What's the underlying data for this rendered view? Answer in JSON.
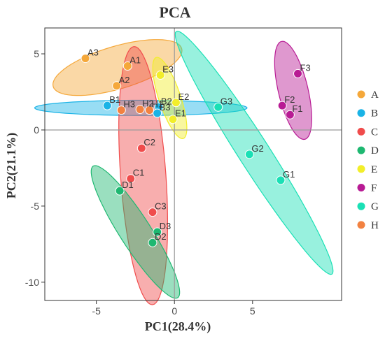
{
  "chart_data": {
    "type": "scatter",
    "title": "PCA",
    "xlabel": "PC1(28.4%)",
    "ylabel": "PC2(21.1%)",
    "xlim": [
      -8.3,
      10.7
    ],
    "ylim": [
      -11.2,
      6.7
    ],
    "xticks": [
      -5,
      0,
      5
    ],
    "yticks": [
      5,
      0,
      -5,
      -10
    ],
    "reference_lines": {
      "x": 0,
      "y": 0
    },
    "grid": false,
    "legend_position": "right",
    "series": [
      {
        "name": "A",
        "color": "#F5A83A",
        "points": [
          {
            "label": "A1",
            "x": -3.0,
            "y": 4.2
          },
          {
            "label": "A2",
            "x": -3.7,
            "y": 2.9
          },
          {
            "label": "A3",
            "x": -5.7,
            "y": 4.7
          }
        ],
        "ellipse": {
          "cx": -3.65,
          "cy": 4.1,
          "rx": 4.3,
          "ry": 1.4,
          "angle": 17
        }
      },
      {
        "name": "B",
        "color": "#1AB3E6",
        "points": [
          {
            "label": "B1",
            "x": -4.3,
            "y": 1.6
          },
          {
            "label": "B2",
            "x": -1.0,
            "y": 1.5
          },
          {
            "label": "B3",
            "x": -1.1,
            "y": 1.1
          }
        ],
        "ellipse": {
          "cx": -2.15,
          "cy": 1.45,
          "rx": 6.8,
          "ry": 0.5,
          "angle": 0
        }
      },
      {
        "name": "C",
        "color": "#F04C4C",
        "points": [
          {
            "label": "C1",
            "x": -2.8,
            "y": -3.2
          },
          {
            "label": "C2",
            "x": -2.1,
            "y": -1.2
          },
          {
            "label": "C3",
            "x": -1.4,
            "y": -5.4
          }
        ],
        "ellipse": {
          "cx": -2.0,
          "cy": -3.0,
          "rx": 8.5,
          "ry": 1.45,
          "angle": -86
        }
      },
      {
        "name": "D",
        "color": "#1EB871",
        "points": [
          {
            "label": "D1",
            "x": -3.5,
            "y": -4.0
          },
          {
            "label": "D2",
            "x": -1.4,
            "y": -7.4
          },
          {
            "label": "D3",
            "x": -1.1,
            "y": -6.7
          }
        ],
        "ellipse": {
          "cx": -2.5,
          "cy": -6.7,
          "rx": 5.1,
          "ry": 1.0,
          "angle": -58
        }
      },
      {
        "name": "E",
        "color": "#F2EE2A",
        "points": [
          {
            "label": "E1",
            "x": -0.1,
            "y": 0.7
          },
          {
            "label": "E2",
            "x": 0.1,
            "y": 1.8
          },
          {
            "label": "E3",
            "x": -0.9,
            "y": 3.6
          }
        ],
        "ellipse": {
          "cx": -0.3,
          "cy": 2.1,
          "rx": 2.8,
          "ry": 0.7,
          "angle": -72
        }
      },
      {
        "name": "F",
        "color": "#B81B94",
        "points": [
          {
            "label": "F1",
            "x": 7.4,
            "y": 1.0
          },
          {
            "label": "F2",
            "x": 6.9,
            "y": 1.6
          },
          {
            "label": "F3",
            "x": 7.9,
            "y": 3.7
          }
        ],
        "ellipse": {
          "cx": 7.6,
          "cy": 2.6,
          "rx": 3.3,
          "ry": 0.95,
          "angle": -77
        }
      },
      {
        "name": "G",
        "color": "#1AE0B5",
        "points": [
          {
            "label": "G1",
            "x": 6.8,
            "y": -3.3
          },
          {
            "label": "G2",
            "x": 4.8,
            "y": -1.6
          },
          {
            "label": "G3",
            "x": 2.8,
            "y": 1.5
          }
        ],
        "ellipse": {
          "cx": 5.1,
          "cy": -1.5,
          "rx": 9.4,
          "ry": 1.0,
          "angle": -58
        }
      },
      {
        "name": "H",
        "color": "#F28241",
        "points": [
          {
            "label": "H1",
            "x": -1.6,
            "y": 1.3
          },
          {
            "label": "H2",
            "x": -2.2,
            "y": 1.35
          },
          {
            "label": "H3",
            "x": -3.4,
            "y": 1.3
          }
        ],
        "ellipse": null
      }
    ]
  }
}
